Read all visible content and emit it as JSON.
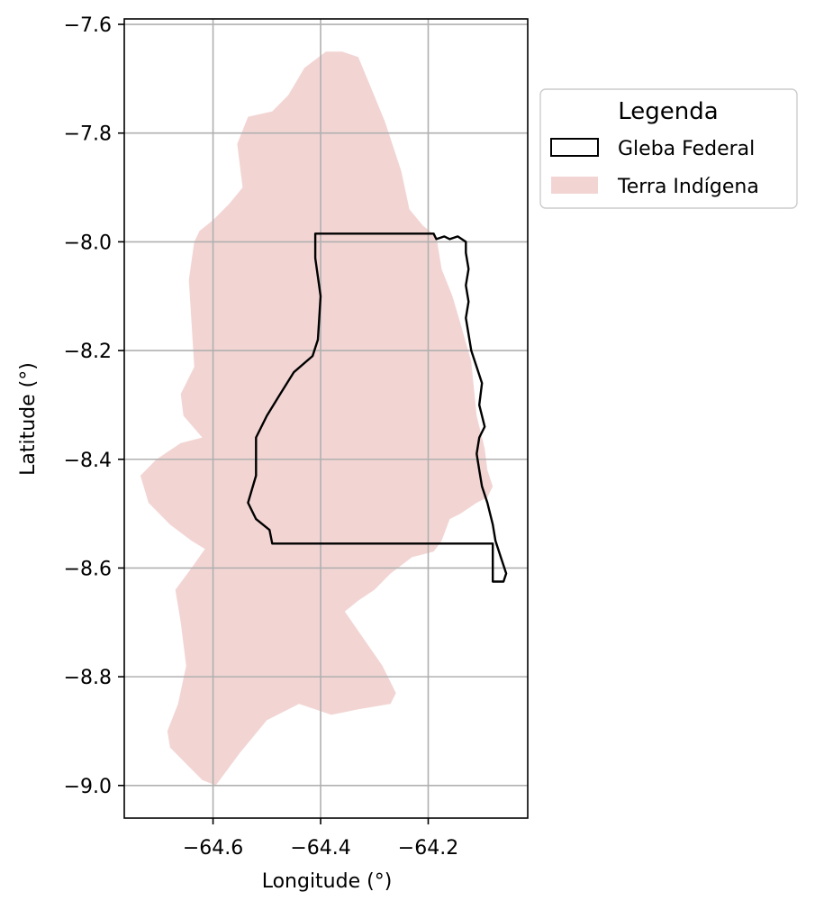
{
  "chart_data": {
    "type": "map",
    "xlabel": "Longitude (°)",
    "ylabel": "Latitude (°)",
    "xlim": [
      -64.765,
      -64.015
    ],
    "ylim": [
      -9.06,
      -7.59
    ],
    "x_ticks": [
      -64.6,
      -64.4,
      -64.2
    ],
    "x_tick_labels": [
      "−64.6",
      "−64.4",
      "−64.2"
    ],
    "y_ticks": [
      -7.6,
      -7.8,
      -8.0,
      -8.2,
      -8.4,
      -8.6,
      -8.8,
      -9.0
    ],
    "y_tick_labels": [
      "−7.6",
      "−7.8",
      "−8.0",
      "−8.2",
      "−8.4",
      "−8.6",
      "−8.8",
      "−9.0"
    ],
    "grid": true,
    "legend": {
      "title": "Legenda",
      "placement": "outside-right-top",
      "entries": [
        {
          "label": "Gleba Federal",
          "style": "outline",
          "color": "#000000"
        },
        {
          "label": "Terra Indígena",
          "style": "fill",
          "color": "#f2d5d3"
        }
      ]
    },
    "layers": [
      {
        "name": "Terra Indígena",
        "color": "#f2d5d3",
        "polygon": [
          [
            -64.33,
            -7.66
          ],
          [
            -64.305,
            -7.72
          ],
          [
            -64.28,
            -7.78
          ],
          [
            -64.25,
            -7.87
          ],
          [
            -64.235,
            -7.94
          ],
          [
            -64.21,
            -7.97
          ],
          [
            -64.185,
            -7.99
          ],
          [
            -64.175,
            -8.05
          ],
          [
            -64.155,
            -8.1
          ],
          [
            -64.14,
            -8.15
          ],
          [
            -64.12,
            -8.22
          ],
          [
            -64.11,
            -8.32
          ],
          [
            -64.095,
            -8.38
          ],
          [
            -64.09,
            -8.42
          ],
          [
            -64.08,
            -8.45
          ],
          [
            -64.09,
            -8.47
          ],
          [
            -64.11,
            -8.48
          ],
          [
            -64.14,
            -8.5
          ],
          [
            -64.16,
            -8.51
          ],
          [
            -64.175,
            -8.55
          ],
          [
            -64.19,
            -8.57
          ],
          [
            -64.23,
            -8.58
          ],
          [
            -64.27,
            -8.61
          ],
          [
            -64.3,
            -8.64
          ],
          [
            -64.33,
            -8.66
          ],
          [
            -64.355,
            -8.68
          ],
          [
            -64.32,
            -8.73
          ],
          [
            -64.285,
            -8.78
          ],
          [
            -64.26,
            -8.83
          ],
          [
            -64.27,
            -8.85
          ],
          [
            -64.33,
            -8.86
          ],
          [
            -64.38,
            -8.87
          ],
          [
            -64.44,
            -8.85
          ],
          [
            -64.5,
            -8.88
          ],
          [
            -64.55,
            -8.94
          ],
          [
            -64.595,
            -9.0
          ],
          [
            -64.62,
            -8.99
          ],
          [
            -64.65,
            -8.96
          ],
          [
            -64.68,
            -8.93
          ],
          [
            -64.685,
            -8.9
          ],
          [
            -64.665,
            -8.85
          ],
          [
            -64.65,
            -8.78
          ],
          [
            -64.66,
            -8.7
          ],
          [
            -64.67,
            -8.64
          ],
          [
            -64.64,
            -8.6
          ],
          [
            -64.615,
            -8.565
          ],
          [
            -64.64,
            -8.55
          ],
          [
            -64.68,
            -8.52
          ],
          [
            -64.72,
            -8.48
          ],
          [
            -64.735,
            -8.43
          ],
          [
            -64.705,
            -8.4
          ],
          [
            -64.66,
            -8.37
          ],
          [
            -64.62,
            -8.36
          ],
          [
            -64.655,
            -8.32
          ],
          [
            -64.66,
            -8.28
          ],
          [
            -64.635,
            -8.23
          ],
          [
            -64.64,
            -8.15
          ],
          [
            -64.645,
            -8.07
          ],
          [
            -64.635,
            -8.0
          ],
          [
            -64.625,
            -7.98
          ],
          [
            -64.6,
            -7.96
          ],
          [
            -64.57,
            -7.93
          ],
          [
            -64.545,
            -7.9
          ],
          [
            -64.555,
            -7.82
          ],
          [
            -64.535,
            -7.77
          ],
          [
            -64.49,
            -7.76
          ],
          [
            -64.46,
            -7.73
          ],
          [
            -64.43,
            -7.68
          ],
          [
            -64.39,
            -7.65
          ],
          [
            -64.36,
            -7.65
          ]
        ]
      },
      {
        "name": "Gleba Federal",
        "color": "#000000",
        "polygon": [
          [
            -64.41,
            -7.985
          ],
          [
            -64.19,
            -7.985
          ],
          [
            -64.185,
            -7.995
          ],
          [
            -64.17,
            -7.99
          ],
          [
            -64.16,
            -7.995
          ],
          [
            -64.145,
            -7.99
          ],
          [
            -64.13,
            -8.0
          ],
          [
            -64.13,
            -8.02
          ],
          [
            -64.125,
            -8.05
          ],
          [
            -64.13,
            -8.08
          ],
          [
            -64.125,
            -8.11
          ],
          [
            -64.13,
            -8.14
          ],
          [
            -64.125,
            -8.17
          ],
          [
            -64.12,
            -8.2
          ],
          [
            -64.11,
            -8.23
          ],
          [
            -64.1,
            -8.26
          ],
          [
            -64.105,
            -8.3
          ],
          [
            -64.095,
            -8.34
          ],
          [
            -64.105,
            -8.36
          ],
          [
            -64.11,
            -8.39
          ],
          [
            -64.105,
            -8.42
          ],
          [
            -64.1,
            -8.45
          ],
          [
            -64.09,
            -8.48
          ],
          [
            -64.08,
            -8.52
          ],
          [
            -64.075,
            -8.55
          ],
          [
            -64.065,
            -8.58
          ],
          [
            -64.055,
            -8.61
          ],
          [
            -64.06,
            -8.625
          ],
          [
            -64.08,
            -8.625
          ],
          [
            -64.08,
            -8.555
          ],
          [
            -64.49,
            -8.555
          ],
          [
            -64.495,
            -8.53
          ],
          [
            -64.52,
            -8.51
          ],
          [
            -64.535,
            -8.48
          ],
          [
            -64.52,
            -8.43
          ],
          [
            -64.52,
            -8.36
          ],
          [
            -64.5,
            -8.32
          ],
          [
            -64.475,
            -8.28
          ],
          [
            -64.45,
            -8.24
          ],
          [
            -64.415,
            -8.21
          ],
          [
            -64.405,
            -8.18
          ],
          [
            -64.4,
            -8.1
          ],
          [
            -64.41,
            -8.03
          ]
        ]
      }
    ]
  }
}
